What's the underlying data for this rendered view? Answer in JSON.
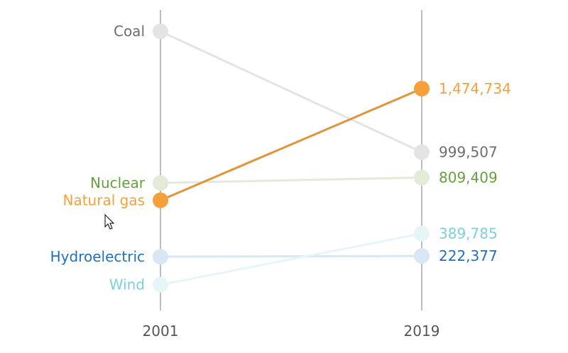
{
  "chart_data": {
    "type": "line",
    "subtype": "slope",
    "categories": [
      "2001",
      "2019"
    ],
    "highlighted": "Natural gas",
    "series": [
      {
        "name": "Coal",
        "values": [
          1903956,
          999507
        ],
        "color": "#6e6e6e",
        "faded_color": "#e4e4e4"
      },
      {
        "name": "Natural gas",
        "values": [
          639129,
          1474734
        ],
        "color": "#f5a03a",
        "line_color": "#e0953a"
      },
      {
        "name": "Nuclear",
        "values": [
          768826,
          809409
        ],
        "color": "#66a03c",
        "faded_color": "#e3ebd8"
      },
      {
        "name": "Hydroelectric",
        "values": [
          216961,
          222377
        ],
        "color": "#1f72b8",
        "faded_color": "#d9e6f3"
      },
      {
        "name": "Wind",
        "values": [
          6737,
          389785
        ],
        "color": "#7ccfdc",
        "faded_color": "#e6f5f7"
      }
    ],
    "end_labels": [
      "999,507",
      "1,474,734",
      "809,409",
      "222,377",
      "389,785"
    ],
    "grid": false,
    "legend": "none"
  }
}
